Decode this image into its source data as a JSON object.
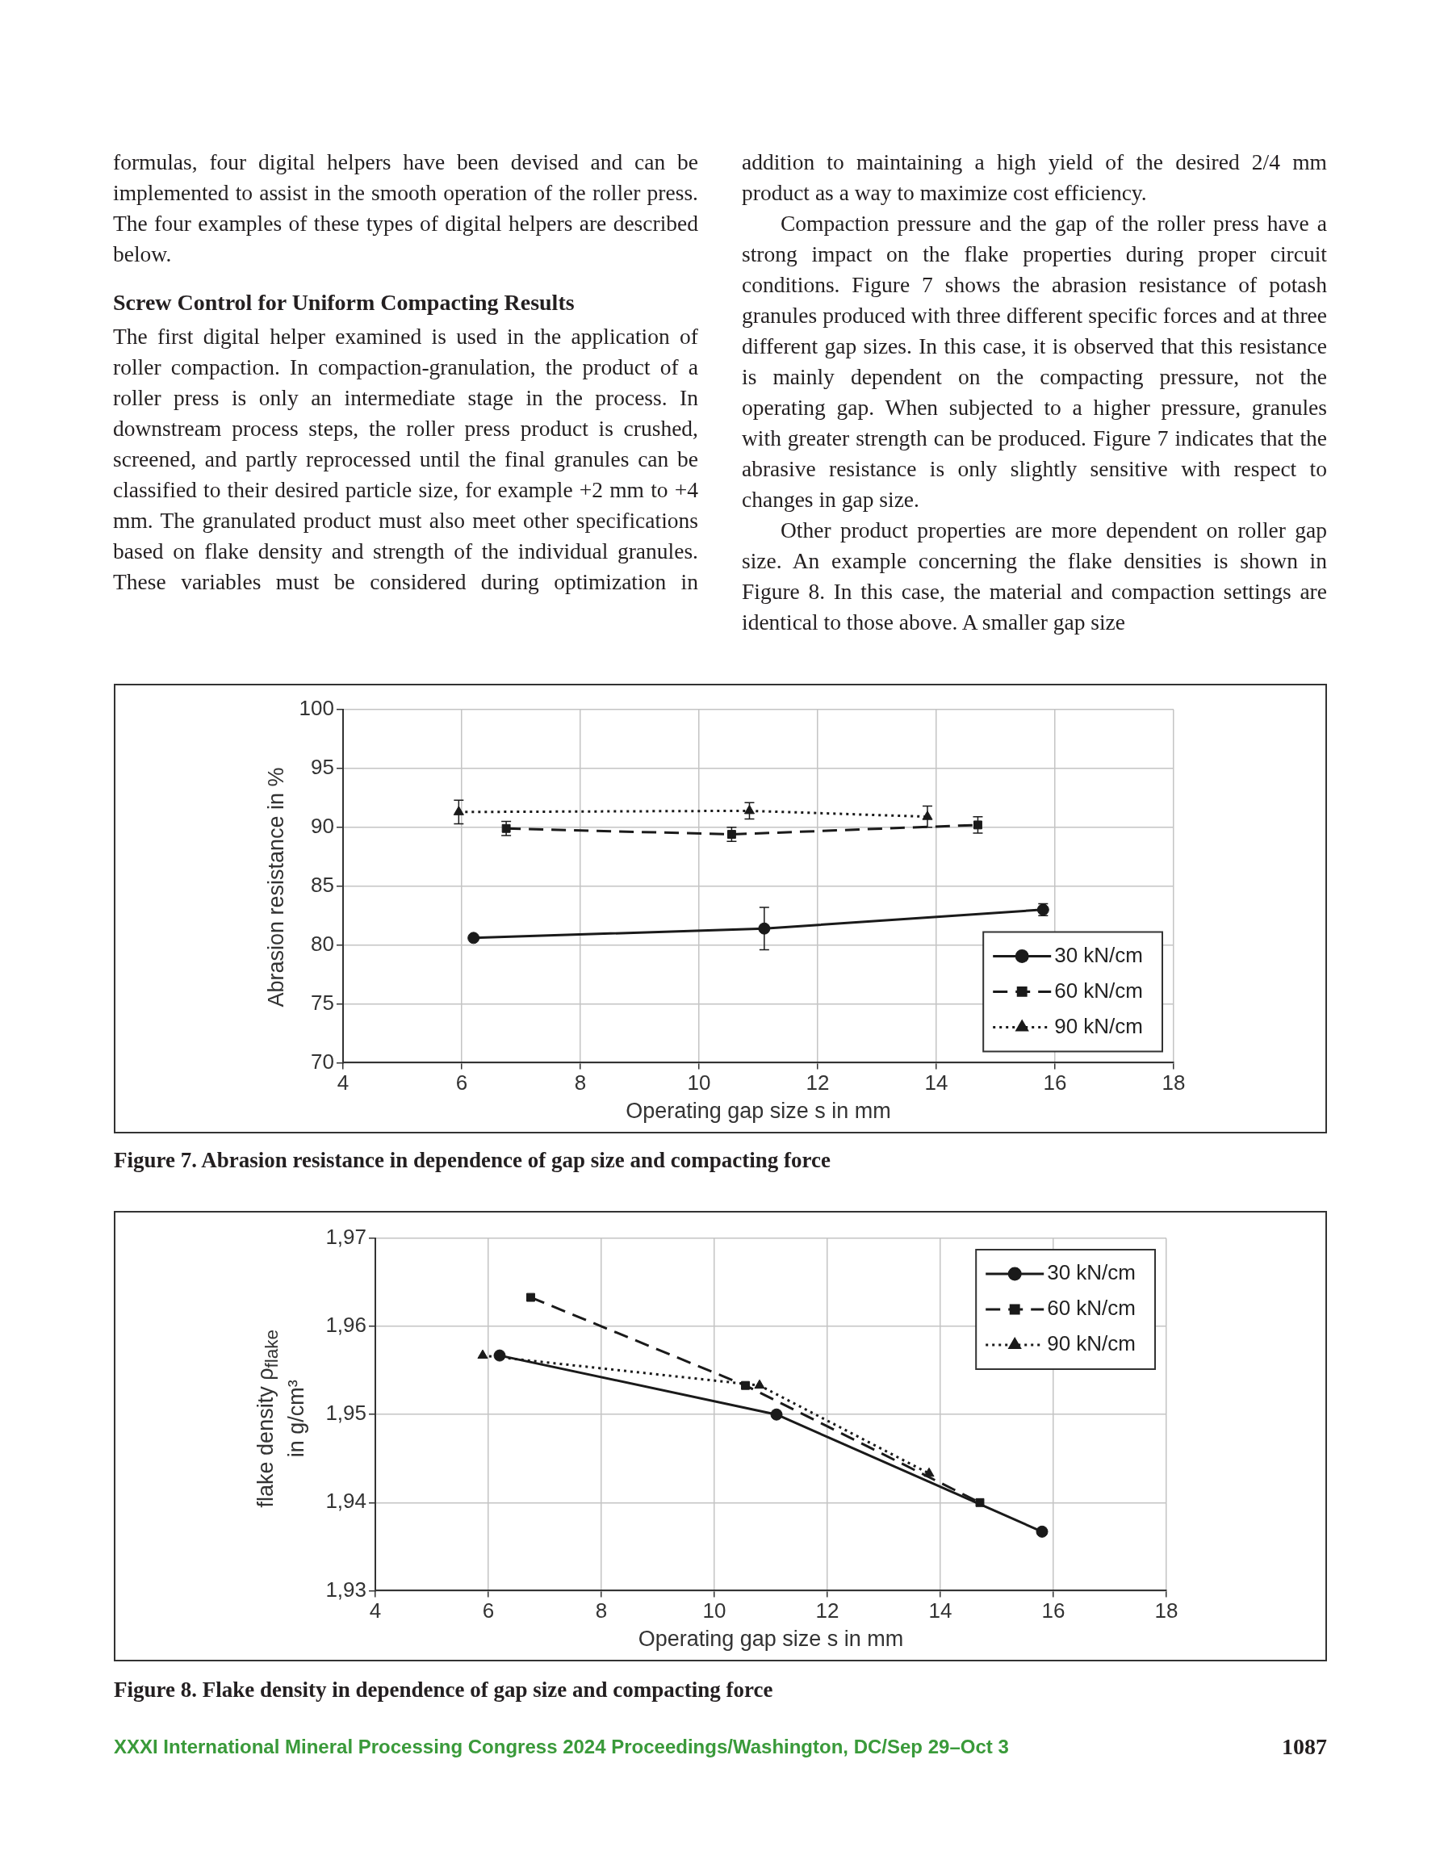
{
  "chart_data": [
    {
      "type": "line",
      "xlabel": "Operating gap size s in mm",
      "ylabel": "Abrasion resistance in %",
      "xlim": [
        4,
        18
      ],
      "xticks": [
        4,
        6,
        8,
        10,
        12,
        14,
        16,
        18
      ],
      "ylim": [
        70,
        100
      ],
      "yticks": [
        70,
        75,
        80,
        85,
        90,
        95,
        100
      ],
      "grid": true,
      "legend": "bottom right",
      "series": [
        {
          "name": "30 kN/cm",
          "color": "#1a1a1a",
          "marker": "circle",
          "line_style": "solid",
          "x": [
            6.2,
            11.1,
            15.8
          ],
          "values": [
            80.6,
            81.4,
            83.0
          ],
          "errors": [
            null,
            1.8,
            0.5
          ]
        },
        {
          "name": "60 kN/cm",
          "color": "#1a1a1a",
          "marker": "square",
          "line_style": "dashed",
          "x": [
            6.75,
            10.55,
            14.7
          ],
          "values": [
            89.9,
            89.4,
            90.2
          ],
          "errors": [
            0.6,
            0.6,
            0.7
          ]
        },
        {
          "name": "90 kN/cm",
          "color": "#1a1a1a",
          "marker": "triangle",
          "line_style": "dotted",
          "x": [
            5.95,
            10.85,
            13.85
          ],
          "values": [
            91.3,
            91.4,
            90.9
          ],
          "errors": [
            1.0,
            0.7,
            0.9
          ]
        }
      ],
      "annotations": [
        "formulas, four digital helpers have been devised and can be implemented to assist in the smooth operation of the roller press. The four examples of these types of digital helpers are described below.",
        "Screw Control for Uniform Compacting Results",
        "The first digital helper examined is used in the application of roller compaction. In compaction-granulation, the product of a roller press is only an intermediate stage in the process. In downstream process steps, the roller press product is crushed, screened, and partly reprocessed until the final granules can be classified to their desired particle size, for example +2 mm to +4 mm. The granulated product must also meet other specifications based on flake density and strength of the individual granules. These variables must be considered during optimization in addition to maintaining a high yield of the desired 2/4 mm product as a way to maximize cost efficiency.",
        "Compaction pressure and the gap of the roller press have a strong impact on the flake properties during proper circuit conditions. Figure 7 shows the abrasion resistance of potash granules produced with three different specific forces and at three different gap sizes. In this case, it is observed that this resistance is mainly dependent on the compacting pressure, not the operating gap. When subjected to a higher pressure, granules with greater strength can be produced. Figure 7 indicates that the abrasive resistance is only slightly sensitive with respect to changes in gap size.",
        "Other product properties are more dependent on roller gap size. An example concerning the flake densities is shown in Figure 8. In this case, the material and compaction settings are identical to those above. A smaller gap size",
        "Figure 7. Abrasion resistance in dependence of gap size and compacting force"
      ]
    },
    {
      "type": "line",
      "xlabel": "Operating gap size s in mm",
      "ylabel": "flake density ρ$_{flake}$\nin g/cm³",
      "xlim": [
        4,
        18
      ],
      "xticks": [
        4,
        6,
        8,
        10,
        12,
        14,
        16,
        18
      ],
      "ylim": [
        1.93,
        1.97
      ],
      "yticks": [
        {
          "value": 1.93,
          "label": "1,93"
        },
        {
          "value": 1.94,
          "label": "1,94"
        },
        {
          "value": 1.95,
          "label": "1,95"
        },
        {
          "value": 1.96,
          "label": "1,96"
        },
        {
          "value": 1.97,
          "label": "1,97"
        }
      ],
      "grid": true,
      "legend": "top right",
      "series": [
        {
          "name": "30 kN/cm",
          "color": "#1a1a1a",
          "marker": "circle",
          "line_style": "solid",
          "x": [
            6.2,
            11.1,
            15.8
          ],
          "values": [
            1.9567,
            1.95,
            1.9367
          ]
        },
        {
          "name": "60 kN/cm",
          "color": "#1a1a1a",
          "marker": "square",
          "line_style": "dashed",
          "x": [
            6.75,
            10.55,
            14.7
          ],
          "values": [
            1.9633,
            1.9533,
            1.94
          ]
        },
        {
          "name": "90 kN/cm",
          "color": "#1a1a1a",
          "marker": "triangle",
          "line_style": "dotted",
          "x": [
            5.9,
            10.8,
            13.8
          ],
          "values": [
            1.9567,
            1.9533,
            1.9433
          ]
        }
      ],
      "annotations": [
        "Figure 8. Flake density in dependence of gap size and compacting force",
        "XXXI International Mineral Processing Congress 2024 Proceedings/Washington, DC/Sep 29–Oct 3",
        "1087"
      ]
    }
  ]
}
